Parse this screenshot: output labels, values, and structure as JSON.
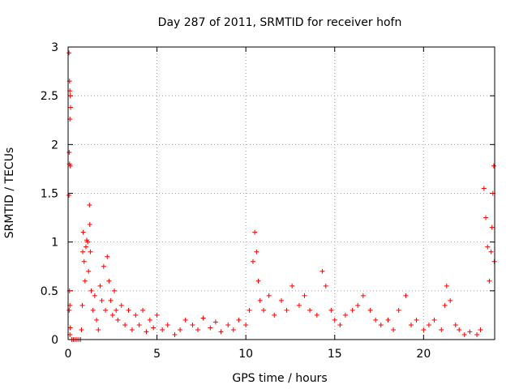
{
  "chart_data": {
    "type": "scatter",
    "title": "Day 287 of 2011, SRMTID for receiver hofn",
    "xlabel": "GPS time / hours",
    "ylabel": "SRMTID / TECUs",
    "xlim": [
      0,
      24
    ],
    "ylim": [
      0,
      3
    ],
    "x_ticks": [
      "0",
      "5",
      "10",
      "15",
      "20"
    ],
    "y_ticks": [
      "0",
      "0.5",
      "1",
      "1.5",
      "2",
      "2.5",
      "3"
    ],
    "grid": true,
    "marker": "+",
    "series_color": "#ff0000",
    "points": [
      [
        0.05,
        2.94
      ],
      [
        0.08,
        2.65
      ],
      [
        0.1,
        2.55
      ],
      [
        0.12,
        2.5
      ],
      [
        0.14,
        2.38
      ],
      [
        0.1,
        2.26
      ],
      [
        0.06,
        1.92
      ],
      [
        0.08,
        1.8
      ],
      [
        0.12,
        1.78
      ],
      [
        0.05,
        1.48
      ],
      [
        0.08,
        0.5
      ],
      [
        0.1,
        0.35
      ],
      [
        0.06,
        0.3
      ],
      [
        0.12,
        0.12
      ],
      [
        0.1,
        0.05
      ],
      [
        0.2,
        0.0
      ],
      [
        0.3,
        0.0
      ],
      [
        0.4,
        0.0
      ],
      [
        0.5,
        0.0
      ],
      [
        0.6,
        0.0
      ],
      [
        0.7,
        0.0
      ],
      [
        0.75,
        0.1
      ],
      [
        0.8,
        0.35
      ],
      [
        0.82,
        0.9
      ],
      [
        0.85,
        1.1
      ],
      [
        0.9,
        0.8
      ],
      [
        0.95,
        0.6
      ],
      [
        1.0,
        0.95
      ],
      [
        1.05,
        1.02
      ],
      [
        1.1,
        1.0
      ],
      [
        1.15,
        0.7
      ],
      [
        1.2,
        1.38
      ],
      [
        1.22,
        1.18
      ],
      [
        1.25,
        0.9
      ],
      [
        1.3,
        0.5
      ],
      [
        1.4,
        0.3
      ],
      [
        1.5,
        0.45
      ],
      [
        1.6,
        0.2
      ],
      [
        1.7,
        0.1
      ],
      [
        1.8,
        0.55
      ],
      [
        1.9,
        0.4
      ],
      [
        2.0,
        0.75
      ],
      [
        2.1,
        0.3
      ],
      [
        2.2,
        0.85
      ],
      [
        2.3,
        0.6
      ],
      [
        2.4,
        0.4
      ],
      [
        2.5,
        0.25
      ],
      [
        2.6,
        0.5
      ],
      [
        2.7,
        0.3
      ],
      [
        2.8,
        0.2
      ],
      [
        3.0,
        0.35
      ],
      [
        3.2,
        0.15
      ],
      [
        3.4,
        0.3
      ],
      [
        3.6,
        0.1
      ],
      [
        3.8,
        0.25
      ],
      [
        4.0,
        0.15
      ],
      [
        4.2,
        0.3
      ],
      [
        4.4,
        0.08
      ],
      [
        4.6,
        0.2
      ],
      [
        4.8,
        0.12
      ],
      [
        5.0,
        0.25
      ],
      [
        5.3,
        0.1
      ],
      [
        5.6,
        0.15
      ],
      [
        6.0,
        0.05
      ],
      [
        6.3,
        0.1
      ],
      [
        6.6,
        0.2
      ],
      [
        7.0,
        0.15
      ],
      [
        7.3,
        0.1
      ],
      [
        7.6,
        0.22
      ],
      [
        8.0,
        0.12
      ],
      [
        8.3,
        0.18
      ],
      [
        8.6,
        0.08
      ],
      [
        9.0,
        0.15
      ],
      [
        9.3,
        0.1
      ],
      [
        9.6,
        0.2
      ],
      [
        10.0,
        0.15
      ],
      [
        10.2,
        0.3
      ],
      [
        10.4,
        0.8
      ],
      [
        10.5,
        1.1
      ],
      [
        10.6,
        0.9
      ],
      [
        10.7,
        0.6
      ],
      [
        10.8,
        0.4
      ],
      [
        11.0,
        0.3
      ],
      [
        11.3,
        0.45
      ],
      [
        11.6,
        0.25
      ],
      [
        12.0,
        0.4
      ],
      [
        12.3,
        0.3
      ],
      [
        12.6,
        0.55
      ],
      [
        13.0,
        0.35
      ],
      [
        13.3,
        0.45
      ],
      [
        13.6,
        0.3
      ],
      [
        14.0,
        0.25
      ],
      [
        14.3,
        0.7
      ],
      [
        14.5,
        0.55
      ],
      [
        14.8,
        0.3
      ],
      [
        15.0,
        0.2
      ],
      [
        15.3,
        0.15
      ],
      [
        15.6,
        0.25
      ],
      [
        16.0,
        0.3
      ],
      [
        16.3,
        0.35
      ],
      [
        16.6,
        0.45
      ],
      [
        17.0,
        0.3
      ],
      [
        17.3,
        0.2
      ],
      [
        17.6,
        0.15
      ],
      [
        18.0,
        0.2
      ],
      [
        18.3,
        0.1
      ],
      [
        18.6,
        0.3
      ],
      [
        19.0,
        0.45
      ],
      [
        19.3,
        0.15
      ],
      [
        19.6,
        0.2
      ],
      [
        20.0,
        0.1
      ],
      [
        20.3,
        0.15
      ],
      [
        20.6,
        0.2
      ],
      [
        21.0,
        0.1
      ],
      [
        21.2,
        0.35
      ],
      [
        21.3,
        0.55
      ],
      [
        21.5,
        0.4
      ],
      [
        21.8,
        0.15
      ],
      [
        22.0,
        0.1
      ],
      [
        22.3,
        0.05
      ],
      [
        22.6,
        0.08
      ],
      [
        23.0,
        0.05
      ],
      [
        23.2,
        0.1
      ],
      [
        23.4,
        1.55
      ],
      [
        23.5,
        1.25
      ],
      [
        23.6,
        0.95
      ],
      [
        23.7,
        0.6
      ],
      [
        23.8,
        0.9
      ],
      [
        23.9,
        1.5
      ],
      [
        23.95,
        1.78
      ],
      [
        23.98,
        0.8
      ],
      [
        23.85,
        1.15
      ]
    ]
  }
}
